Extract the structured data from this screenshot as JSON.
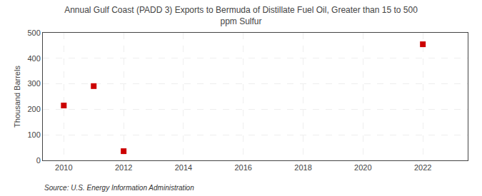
{
  "chart_data": {
    "type": "scatter",
    "title": "Annual Gulf Coast (PADD 3) Exports to Bermuda of Distillate Fuel Oil, Greater than 15 to 500\nppm Sulfur",
    "ylabel": "Thousand Barrels",
    "source": "Source: U.S. Energy Information Administration",
    "x": [
      2010,
      2011,
      2012,
      2022
    ],
    "values": [
      215,
      291,
      36,
      455
    ],
    "color": "#cc0000",
    "marker": "square",
    "xlim": [
      2009.3,
      2023.5
    ],
    "ylim": [
      0,
      500
    ],
    "xticks": [
      2010,
      2012,
      2014,
      2016,
      2018,
      2020,
      2022
    ],
    "yticks": [
      0,
      100,
      200,
      300,
      400,
      500
    ],
    "grid": true
  }
}
